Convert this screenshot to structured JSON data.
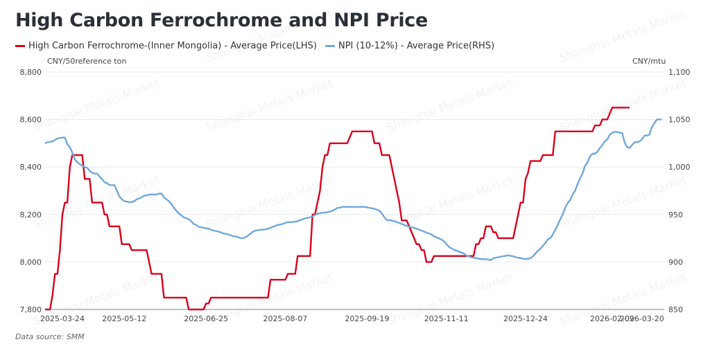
{
  "title": "High Carbon Ferrochrome and NPI Price",
  "watermark": "Shanghai Metals Market",
  "source": "Data source:  SMM",
  "chart_data": {
    "type": "line",
    "title": "High Carbon Ferrochrome and NPI Price",
    "xlabel": "",
    "x_type": "category index (trading days)",
    "x_range": [
      0,
      250
    ],
    "grid": true,
    "legend": "top-left",
    "x_ticks": [
      {
        "i": 7,
        "label": "2025-03-24"
      },
      {
        "i": 32,
        "label": "2025-05-12"
      },
      {
        "i": 65,
        "label": "2025-06-25"
      },
      {
        "i": 97,
        "label": "2025-08-07"
      },
      {
        "i": 130,
        "label": "2025-09-19"
      },
      {
        "i": 162,
        "label": "2025-11-11"
      },
      {
        "i": 194,
        "label": "2025-12-24"
      },
      {
        "i": 229,
        "label": "2026-02-09"
      },
      {
        "i": 241,
        "label": "2026-03-20"
      }
    ],
    "y_left": {
      "label": "CNY/50reference ton",
      "range": [
        7800,
        8800
      ],
      "ticks": [
        "7,800",
        "8,000",
        "8,200",
        "8,400",
        "8,600",
        "8,800"
      ],
      "tick_values": [
        7800,
        8000,
        8200,
        8400,
        8600,
        8800
      ]
    },
    "y_right": {
      "label": "CNY/mtu",
      "range": [
        850,
        1100
      ],
      "ticks": [
        "850",
        "900",
        "950",
        "1,000",
        "1,050",
        "1,100"
      ],
      "tick_values": [
        850,
        900,
        950,
        1000,
        1050,
        1100
      ]
    },
    "series": [
      {
        "name": "High Carbon Ferrochrome-(Inner Mongolia) - Average Price(LHS)",
        "axis": "left",
        "color": "#d9001b",
        "points": [
          [
            0,
            7800
          ],
          [
            2,
            7800
          ],
          [
            3,
            7860
          ],
          [
            4,
            7950
          ],
          [
            5,
            7950
          ],
          [
            6,
            8050
          ],
          [
            7,
            8200
          ],
          [
            8,
            8250
          ],
          [
            9,
            8250
          ],
          [
            10,
            8400
          ],
          [
            11,
            8450
          ],
          [
            15,
            8450
          ],
          [
            16,
            8350
          ],
          [
            18,
            8350
          ],
          [
            19,
            8250
          ],
          [
            23,
            8250
          ],
          [
            24,
            8200
          ],
          [
            25,
            8200
          ],
          [
            26,
            8150
          ],
          [
            30,
            8150
          ],
          [
            31,
            8075
          ],
          [
            34,
            8075
          ],
          [
            35,
            8050
          ],
          [
            41,
            8050
          ],
          [
            43,
            7950
          ],
          [
            47,
            7950
          ],
          [
            48,
            7850
          ],
          [
            57,
            7850
          ],
          [
            58,
            7800
          ],
          [
            64,
            7800
          ],
          [
            65,
            7825
          ],
          [
            66,
            7825
          ],
          [
            67,
            7850
          ],
          [
            90,
            7850
          ],
          [
            91,
            7925
          ],
          [
            97,
            7925
          ],
          [
            98,
            7950
          ],
          [
            101,
            7950
          ],
          [
            102,
            8025
          ],
          [
            107,
            8025
          ],
          [
            108,
            8200
          ],
          [
            109,
            8200
          ],
          [
            110,
            8250
          ],
          [
            111,
            8300
          ],
          [
            112,
            8400
          ],
          [
            113,
            8450
          ],
          [
            114,
            8450
          ],
          [
            115,
            8500
          ],
          [
            117,
            8500
          ],
          [
            118,
            8500
          ],
          [
            122,
            8500
          ],
          [
            124,
            8550
          ],
          [
            132,
            8550
          ],
          [
            133,
            8500
          ],
          [
            135,
            8500
          ],
          [
            136,
            8450
          ],
          [
            139,
            8450
          ],
          [
            140,
            8400
          ],
          [
            141,
            8350
          ],
          [
            142,
            8300
          ],
          [
            143,
            8250
          ],
          [
            144,
            8175
          ],
          [
            146,
            8175
          ],
          [
            147,
            8150
          ],
          [
            148,
            8125
          ],
          [
            150,
            8075
          ],
          [
            151,
            8075
          ],
          [
            152,
            8050
          ],
          [
            153,
            8050
          ],
          [
            154,
            8000
          ],
          [
            156,
            8000
          ],
          [
            157,
            8025
          ],
          [
            173,
            8025
          ],
          [
            174,
            8075
          ],
          [
            175,
            8075
          ],
          [
            176,
            8100
          ],
          [
            177,
            8100
          ],
          [
            178,
            8150
          ],
          [
            180,
            8150
          ],
          [
            181,
            8125
          ],
          [
            182,
            8125
          ],
          [
            183,
            8100
          ],
          [
            189,
            8100
          ],
          [
            191,
            8200
          ],
          [
            192,
            8250
          ],
          [
            193,
            8250
          ],
          [
            194,
            8350
          ],
          [
            195,
            8375
          ],
          [
            196,
            8425
          ],
          [
            200,
            8425
          ],
          [
            201,
            8450
          ],
          [
            205,
            8450
          ],
          [
            206,
            8550
          ],
          [
            221,
            8550
          ],
          [
            222,
            8575
          ],
          [
            224,
            8575
          ],
          [
            225,
            8600
          ],
          [
            227,
            8600
          ],
          [
            229,
            8650
          ],
          [
            236,
            8650
          ]
        ]
      },
      {
        "name": "NPI (10-12%) - Average Price(RHS)",
        "axis": "right",
        "color": "#6fa8dc",
        "points": [
          [
            0,
            1025
          ],
          [
            1,
            1026
          ],
          [
            3,
            1027
          ],
          [
            5,
            1030
          ],
          [
            7,
            1031
          ],
          [
            8,
            1031
          ],
          [
            9,
            1024
          ],
          [
            10,
            1021
          ],
          [
            11,
            1015
          ],
          [
            12,
            1008
          ],
          [
            13,
            1005
          ],
          [
            14,
            1003
          ],
          [
            16,
            1000
          ],
          [
            17,
            999
          ],
          [
            18,
            996
          ],
          [
            19,
            994
          ],
          [
            20,
            993
          ],
          [
            21,
            993
          ],
          [
            22,
            990
          ],
          [
            23,
            987
          ],
          [
            24,
            984
          ],
          [
            25,
            983
          ],
          [
            26,
            981
          ],
          [
            28,
            981
          ],
          [
            29,
            975
          ],
          [
            30,
            969
          ],
          [
            31,
            966
          ],
          [
            32,
            964
          ],
          [
            34,
            963
          ],
          [
            35,
            963
          ],
          [
            36,
            964
          ],
          [
            37,
            966
          ],
          [
            38,
            967
          ],
          [
            39,
            968
          ],
          [
            40,
            970
          ],
          [
            41,
            970
          ],
          [
            42,
            971
          ],
          [
            45,
            971
          ],
          [
            46,
            972
          ],
          [
            47,
            972
          ],
          [
            48,
            968
          ],
          [
            50,
            964
          ],
          [
            51,
            961
          ],
          [
            52,
            957
          ],
          [
            53,
            954
          ],
          [
            54,
            951
          ],
          [
            55,
            949
          ],
          [
            56,
            947
          ],
          [
            58,
            945
          ],
          [
            59,
            943
          ],
          [
            60,
            940
          ],
          [
            61,
            939
          ],
          [
            62,
            937
          ],
          [
            64,
            936
          ],
          [
            66,
            935
          ],
          [
            68,
            933
          ],
          [
            70,
            932
          ],
          [
            72,
            930
          ],
          [
            74,
            929
          ],
          [
            76,
            927
          ],
          [
            77,
            927
          ],
          [
            78,
            926
          ],
          [
            79,
            925
          ],
          [
            80,
            925
          ],
          [
            81,
            926
          ],
          [
            82,
            928
          ],
          [
            83,
            930
          ],
          [
            84,
            932
          ],
          [
            85,
            933
          ],
          [
            87,
            934
          ],
          [
            88,
            934
          ],
          [
            90,
            935
          ],
          [
            92,
            937
          ],
          [
            93,
            938
          ],
          [
            94,
            939
          ],
          [
            96,
            940
          ],
          [
            97,
            941
          ],
          [
            98,
            942
          ],
          [
            100,
            942
          ],
          [
            102,
            943
          ],
          [
            103,
            944
          ],
          [
            104,
            945
          ],
          [
            105,
            946
          ],
          [
            107,
            947
          ],
          [
            108,
            948
          ],
          [
            110,
            951
          ],
          [
            111,
            951
          ],
          [
            112,
            952
          ],
          [
            113,
            952
          ],
          [
            115,
            953
          ],
          [
            116,
            954
          ],
          [
            117,
            955
          ],
          [
            118,
            957
          ],
          [
            119,
            957
          ],
          [
            120,
            958
          ],
          [
            122,
            958
          ],
          [
            125,
            958
          ],
          [
            127,
            958
          ],
          [
            129,
            958
          ],
          [
            131,
            957
          ],
          [
            133,
            956
          ],
          [
            134,
            955
          ],
          [
            135,
            954
          ],
          [
            136,
            951
          ],
          [
            137,
            947
          ],
          [
            138,
            944
          ],
          [
            139,
            944
          ],
          [
            141,
            943
          ],
          [
            142,
            942
          ],
          [
            144,
            940
          ],
          [
            146,
            938
          ],
          [
            147,
            937
          ],
          [
            149,
            936
          ],
          [
            151,
            934
          ],
          [
            152,
            933
          ],
          [
            154,
            931
          ],
          [
            156,
            929
          ],
          [
            157,
            927
          ],
          [
            159,
            925
          ],
          [
            161,
            922
          ],
          [
            162,
            919
          ],
          [
            163,
            916
          ],
          [
            165,
            913
          ],
          [
            167,
            911
          ],
          [
            169,
            909
          ],
          [
            170,
            907
          ],
          [
            172,
            905
          ],
          [
            174,
            904
          ],
          [
            176,
            903
          ],
          [
            178,
            903
          ],
          [
            180,
            902
          ],
          [
            181,
            904
          ],
          [
            183,
            905
          ],
          [
            185,
            906
          ],
          [
            187,
            907
          ],
          [
            189,
            906
          ],
          [
            190,
            905
          ],
          [
            192,
            904
          ],
          [
            194,
            903
          ],
          [
            196,
            904
          ],
          [
            197,
            906
          ],
          [
            198,
            909
          ],
          [
            199,
            912
          ],
          [
            200,
            914
          ],
          [
            201,
            917
          ],
          [
            202,
            920
          ],
          [
            203,
            924
          ],
          [
            204,
            925
          ],
          [
            205,
            929
          ],
          [
            206,
            934
          ],
          [
            207,
            939
          ],
          [
            208,
            945
          ],
          [
            209,
            950
          ],
          [
            210,
            957
          ],
          [
            211,
            962
          ],
          [
            212,
            965
          ],
          [
            213,
            971
          ],
          [
            214,
            975
          ],
          [
            215,
            982
          ],
          [
            216,
            988
          ],
          [
            217,
            993
          ],
          [
            218,
            1001
          ],
          [
            219,
            1005
          ],
          [
            220,
            1011
          ],
          [
            221,
            1014
          ],
          [
            222,
            1014
          ],
          [
            223,
            1016
          ],
          [
            224,
            1020
          ],
          [
            225,
            1023
          ],
          [
            226,
            1027
          ],
          [
            227,
            1029
          ],
          [
            228,
            1034
          ],
          [
            229,
            1036
          ],
          [
            230,
            1037
          ],
          [
            231,
            1037
          ],
          [
            232,
            1036
          ],
          [
            233,
            1036
          ],
          [
            234,
            1026
          ],
          [
            235,
            1021
          ],
          [
            236,
            1020
          ],
          [
            237,
            1023
          ],
          [
            238,
            1026
          ],
          [
            239,
            1026
          ],
          [
            240,
            1027
          ],
          [
            241,
            1029
          ],
          [
            242,
            1033
          ],
          [
            243,
            1033
          ],
          [
            244,
            1034
          ],
          [
            245,
            1042
          ],
          [
            246,
            1046
          ],
          [
            247,
            1050
          ],
          [
            248,
            1050
          ],
          [
            249,
            1050
          ]
        ]
      }
    ]
  }
}
